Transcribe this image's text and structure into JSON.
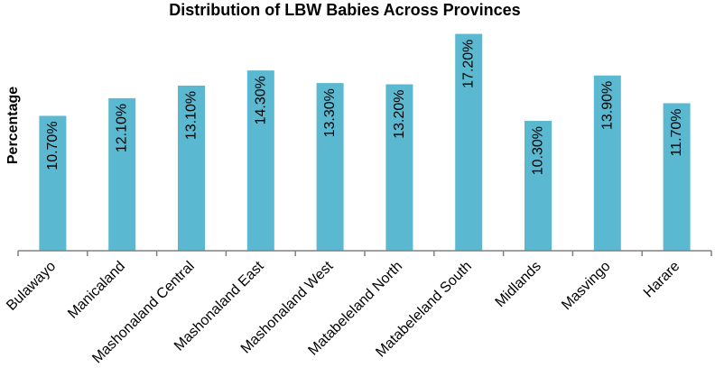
{
  "chart_data": {
    "type": "bar",
    "title": "Distribution of LBW Babies Across Provinces",
    "xlabel": "",
    "ylabel": "Percentage",
    "categories": [
      "Bulawayo",
      "Manicaland",
      "Mashonaland Central",
      "Mashonaland East",
      "Mashonaland West",
      "Matabeleland North",
      "Matabeleland South",
      "Midlands",
      "Masvingo",
      "Harare"
    ],
    "values": [
      10.7,
      12.1,
      13.1,
      14.3,
      13.3,
      13.2,
      17.2,
      10.3,
      13.9,
      11.7
    ],
    "data_labels": [
      "10.70%",
      "12.10%",
      "13.10%",
      "14.30%",
      "13.30%",
      "13.20%",
      "17.20%",
      "10.30%",
      "13.90%",
      "11.70%"
    ],
    "ylim": [
      0,
      17.6
    ],
    "grid": false,
    "legend": "none",
    "bar_color": "#5BB8D1"
  }
}
